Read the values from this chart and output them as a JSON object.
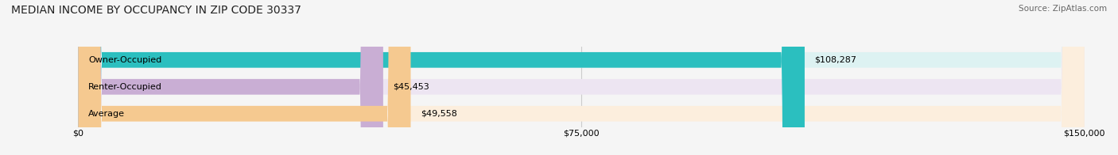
{
  "title": "MEDIAN INCOME BY OCCUPANCY IN ZIP CODE 30337",
  "source": "Source: ZipAtlas.com",
  "categories": [
    "Owner-Occupied",
    "Renter-Occupied",
    "Average"
  ],
  "values": [
    108287,
    45453,
    49558
  ],
  "value_labels": [
    "$108,287",
    "$45,453",
    "$49,558"
  ],
  "bar_colors": [
    "#2bbfbf",
    "#c9aed4",
    "#f5c990"
  ],
  "bar_bg_colors": [
    "#ddf2f2",
    "#ede5f2",
    "#fceedd"
  ],
  "xlim": [
    0,
    150000
  ],
  "xticks": [
    0,
    75000,
    150000
  ],
  "xtick_labels": [
    "$0",
    "$75,000",
    "$150,000"
  ],
  "title_fontsize": 10,
  "source_fontsize": 7.5,
  "label_fontsize": 8,
  "value_fontsize": 8,
  "tick_fontsize": 8,
  "bar_height": 0.58,
  "background_color": "#f5f5f5"
}
